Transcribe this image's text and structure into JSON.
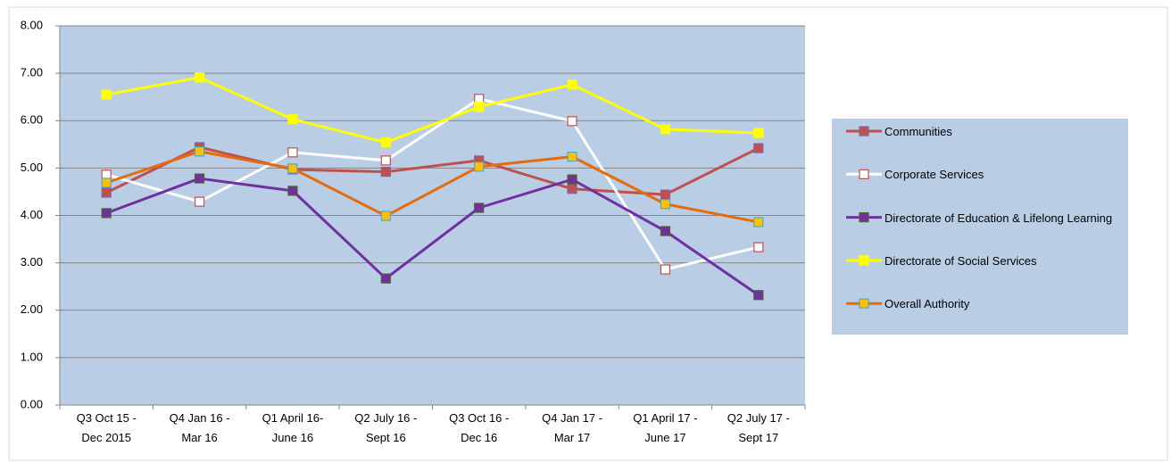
{
  "chart_data": {
    "type": "line",
    "categories": [
      "Q3 Oct 15 -\nDec 2015",
      "Q4 Jan 16 -\nMar 16",
      "Q1 April 16-\nJune 16",
      "Q2 July 16 -\nSept 16",
      "Q3 Oct 16 -\nDec 16",
      "Q4 Jan 17 -\nMar 17",
      "Q1 April 17 -\nJune 17",
      "Q2 July 17 -\nSept 17"
    ],
    "series": [
      {
        "name": "Communities",
        "color": "#c0504d",
        "marker_fill": "#c0504d",
        "marker_stroke": "#8064a2",
        "values": [
          4.48,
          5.44,
          4.97,
          4.92,
          5.16,
          4.56,
          4.44,
          5.42
        ]
      },
      {
        "name": "Corporate Services",
        "color": "#ffffff",
        "marker_fill": "#ffffff",
        "marker_stroke": "#c0504d",
        "values": [
          4.86,
          4.29,
          5.33,
          5.16,
          6.46,
          5.99,
          2.86,
          3.33
        ]
      },
      {
        "name": "Directorate of Education & Lifelong Learning",
        "color": "#7030a0",
        "marker_fill": "#7030a0",
        "marker_stroke": "#4f6228",
        "values": [
          4.05,
          4.78,
          4.52,
          2.67,
          4.16,
          4.76,
          3.67,
          2.32
        ]
      },
      {
        "name": "Directorate of Social Services",
        "color": "#ffff00",
        "marker_fill": "#ffff00",
        "marker_stroke": "#ffff00",
        "values": [
          6.55,
          6.91,
          6.03,
          5.54,
          6.29,
          6.76,
          5.82,
          5.74
        ]
      },
      {
        "name": "Overall Authority",
        "color": "#e46c0a",
        "marker_fill": "#ffc000",
        "marker_stroke": "#4bacc6",
        "values": [
          4.69,
          5.35,
          4.99,
          3.99,
          5.03,
          5.24,
          4.24,
          3.86
        ]
      }
    ],
    "ylim": [
      0,
      8
    ],
    "yticks": [
      {
        "value": 0,
        "label": "0.00"
      },
      {
        "value": 1,
        "label": "1.00"
      },
      {
        "value": 2,
        "label": "2.00"
      },
      {
        "value": 3,
        "label": "3.00"
      },
      {
        "value": 4,
        "label": "4.00"
      },
      {
        "value": 5,
        "label": "5.00"
      },
      {
        "value": 6,
        "label": "6.00"
      },
      {
        "value": 7,
        "label": "7.00"
      },
      {
        "value": 8,
        "label": "8.00"
      }
    ],
    "grid": true,
    "plot_background": "#b9cde5",
    "legend": "right"
  }
}
